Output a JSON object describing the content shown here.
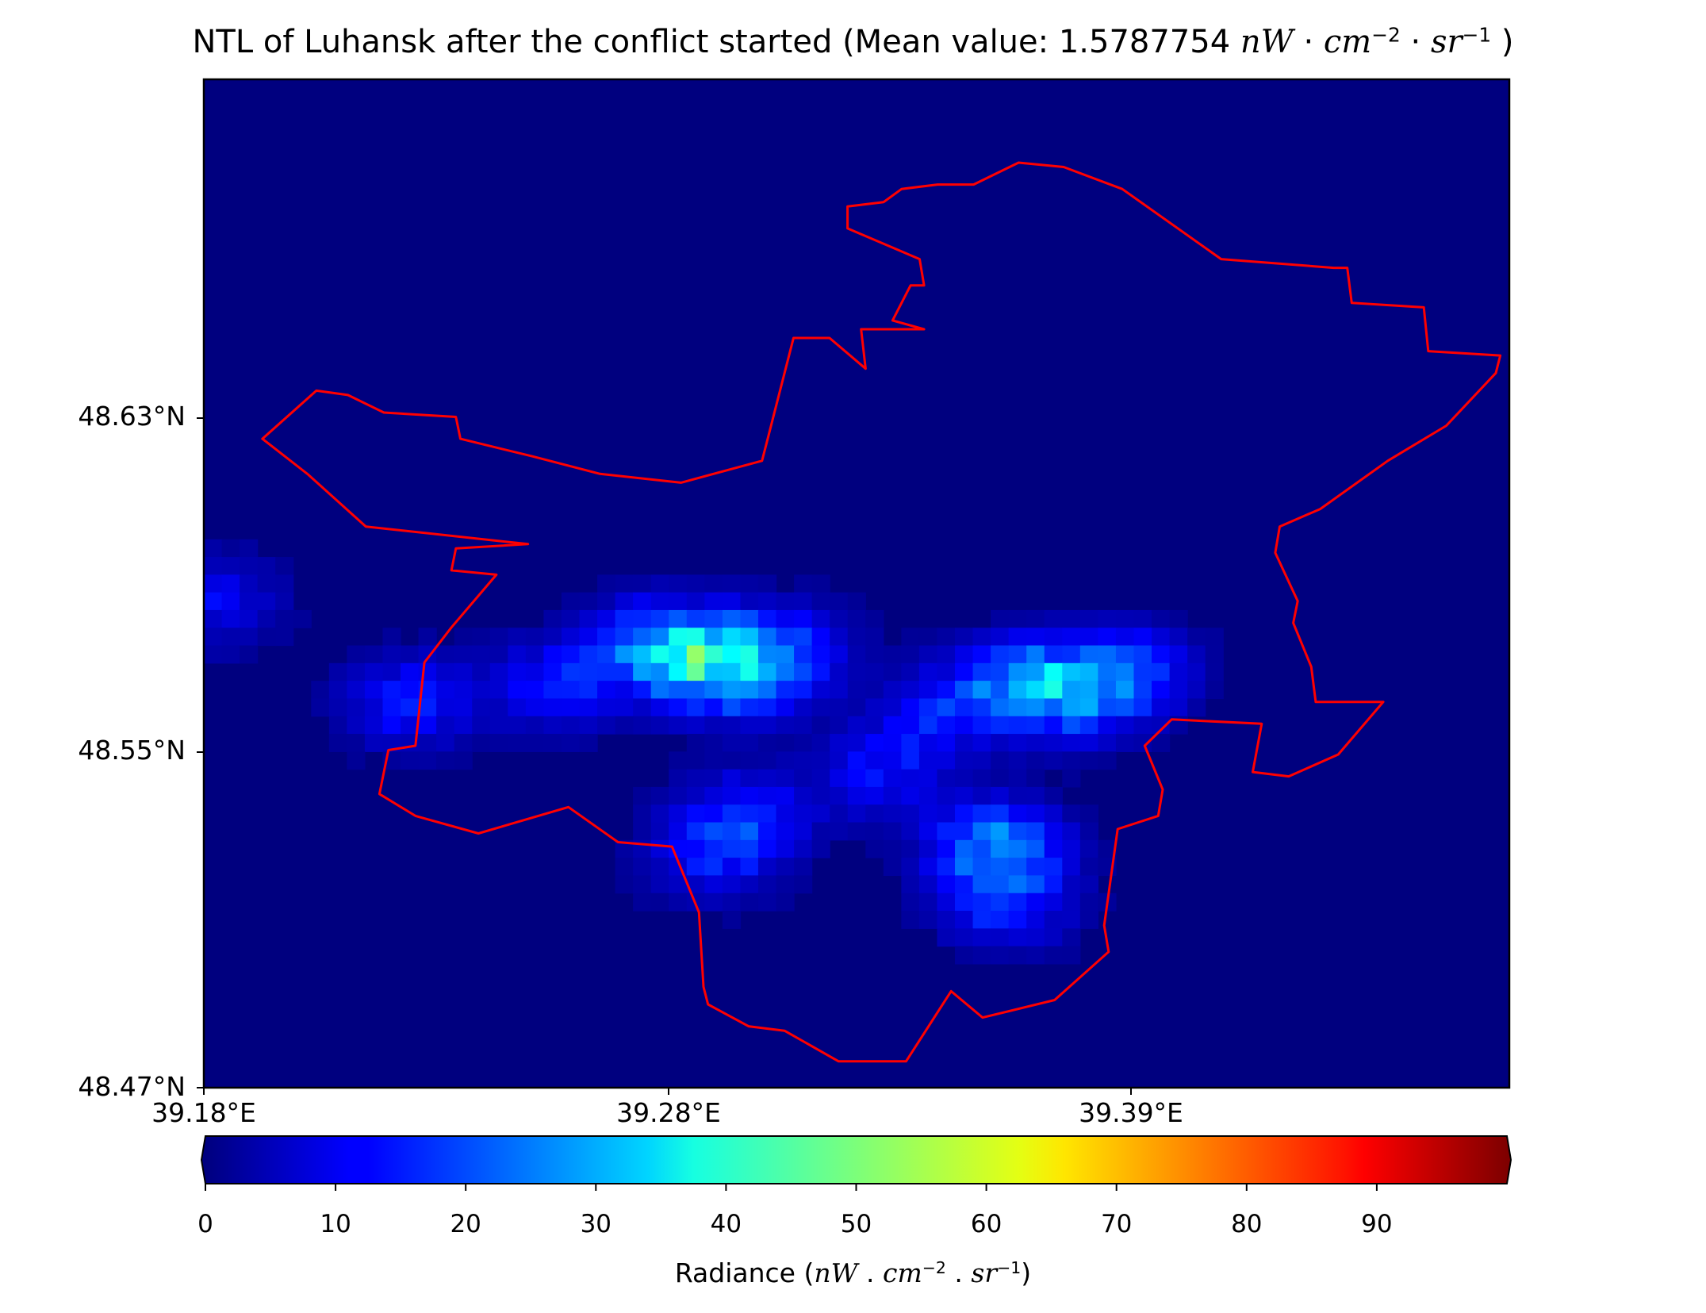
{
  "title": {
    "prefix": "NTL of Luhansk after the conflict started (Mean value: 1.5787754 ",
    "unit_nw": "nW",
    "dot1": " · ",
    "unit_cm": "cm",
    "exp_cm": "−2",
    "dot2": " · ",
    "unit_sr": "sr",
    "exp_sr": "−1",
    "suffix": " )"
  },
  "map": {
    "lat_range": [
      48.47,
      48.7
    ],
    "lon_range": [
      39.18,
      39.47
    ],
    "background_color": "#00007f",
    "boundary_color": "#ff0000",
    "lat_ticks": [
      {
        "value": 48.63,
        "label": "48.63°N"
      },
      {
        "value": 48.55,
        "label": "48.55°N"
      },
      {
        "value": 48.47,
        "label": "48.47°N"
      }
    ],
    "lon_ticks": [
      {
        "value": 39.18,
        "label": "39.18°E"
      },
      {
        "value": 39.28,
        "label": "39.28°E"
      },
      {
        "value": 39.39,
        "label": "39.39°E"
      }
    ],
    "boundary_lonlat": [
      [
        39.323,
        48.666
      ],
      [
        39.323,
        48.671
      ],
      [
        39.331,
        48.672
      ],
      [
        39.335,
        48.675
      ],
      [
        39.343,
        48.676
      ],
      [
        39.351,
        48.676
      ],
      [
        39.361,
        48.681
      ],
      [
        39.371,
        48.68
      ],
      [
        39.384,
        48.675
      ],
      [
        39.406,
        48.659
      ],
      [
        39.431,
        48.657
      ],
      [
        39.434,
        48.657
      ],
      [
        39.435,
        48.649
      ],
      [
        39.451,
        48.648
      ],
      [
        39.452,
        48.638
      ],
      [
        39.468,
        48.637
      ],
      [
        39.467,
        48.633
      ],
      [
        39.456,
        48.621
      ],
      [
        39.443,
        48.613
      ],
      [
        39.428,
        48.602
      ],
      [
        39.419,
        48.598
      ],
      [
        39.418,
        48.592
      ],
      [
        39.423,
        48.581
      ],
      [
        39.422,
        48.576
      ],
      [
        39.426,
        48.566
      ],
      [
        39.427,
        48.558
      ],
      [
        39.442,
        48.558
      ],
      [
        39.432,
        48.546
      ],
      [
        39.421,
        48.541
      ],
      [
        39.413,
        48.542
      ],
      [
        39.415,
        48.553
      ],
      [
        39.395,
        48.554
      ],
      [
        39.389,
        48.548
      ],
      [
        39.393,
        48.538
      ],
      [
        39.392,
        48.532
      ],
      [
        39.383,
        48.529
      ],
      [
        39.38,
        48.507
      ],
      [
        39.381,
        48.501
      ],
      [
        39.369,
        48.49
      ],
      [
        39.353,
        48.486
      ],
      [
        39.346,
        48.492
      ],
      [
        39.336,
        48.476
      ],
      [
        39.321,
        48.476
      ],
      [
        39.309,
        48.483
      ],
      [
        39.301,
        48.484
      ],
      [
        39.292,
        48.489
      ],
      [
        39.291,
        48.493
      ],
      [
        39.29,
        48.51
      ],
      [
        39.284,
        48.525
      ],
      [
        39.272,
        48.526
      ],
      [
        39.261,
        48.534
      ],
      [
        39.241,
        48.528
      ],
      [
        39.227,
        48.532
      ],
      [
        39.219,
        48.537
      ],
      [
        39.221,
        48.547
      ],
      [
        39.227,
        48.548
      ],
      [
        39.229,
        48.567
      ],
      [
        39.235,
        48.575
      ],
      [
        39.245,
        48.587
      ],
      [
        39.235,
        48.588
      ],
      [
        39.236,
        48.593
      ],
      [
        39.252,
        48.594
      ],
      [
        39.216,
        48.598
      ],
      [
        39.203,
        48.61
      ],
      [
        39.193,
        48.618
      ],
      [
        39.205,
        48.629
      ],
      [
        39.212,
        48.628
      ],
      [
        39.22,
        48.624
      ],
      [
        39.236,
        48.623
      ],
      [
        39.237,
        48.618
      ],
      [
        39.253,
        48.614
      ],
      [
        39.268,
        48.61
      ],
      [
        39.286,
        48.608
      ],
      [
        39.304,
        48.613
      ],
      [
        39.305,
        48.617
      ],
      [
        39.311,
        48.641
      ],
      [
        39.319,
        48.641
      ],
      [
        39.327,
        48.634
      ],
      [
        39.326,
        48.643
      ],
      [
        39.34,
        48.643
      ],
      [
        39.333,
        48.645
      ],
      [
        39.337,
        48.653
      ],
      [
        39.34,
        48.653
      ],
      [
        39.339,
        48.659
      ],
      [
        39.323,
        48.666
      ]
    ]
  },
  "colorbar": {
    "cmap": "jet",
    "min": 0,
    "max": 100,
    "extend": "both",
    "ticks": [
      {
        "value": 0,
        "label": "0"
      },
      {
        "value": 10,
        "label": "10"
      },
      {
        "value": 20,
        "label": "20"
      },
      {
        "value": 30,
        "label": "30"
      },
      {
        "value": 40,
        "label": "40"
      },
      {
        "value": 50,
        "label": "50"
      },
      {
        "value": 60,
        "label": "60"
      },
      {
        "value": 70,
        "label": "70"
      },
      {
        "value": 80,
        "label": "80"
      },
      {
        "value": 90,
        "label": "90"
      }
    ],
    "label": {
      "prefix": "Radiance (",
      "unit_nw": "nW",
      "dot1": " . ",
      "unit_cm": "cm",
      "exp_cm": "−2",
      "dot2": " . ",
      "unit_sr": "sr",
      "exp_sr": "−1",
      "suffix": ")"
    }
  },
  "radiance_field": {
    "units": "nW·cm⁻²·sr⁻¹",
    "hotspots": [
      {
        "lon": 39.28,
        "lat": 48.571,
        "value": 19
      },
      {
        "lon": 39.298,
        "lat": 48.565,
        "value": 24
      },
      {
        "lon": 39.29,
        "lat": 48.568,
        "value": 14
      },
      {
        "lon": 39.258,
        "lat": 48.562,
        "value": 13
      },
      {
        "lon": 39.226,
        "lat": 48.558,
        "value": 14
      },
      {
        "lon": 39.31,
        "lat": 48.57,
        "value": 12
      },
      {
        "lon": 39.362,
        "lat": 48.562,
        "value": 21
      },
      {
        "lon": 39.375,
        "lat": 48.56,
        "value": 17
      },
      {
        "lon": 39.386,
        "lat": 48.565,
        "value": 14
      },
      {
        "lon": 39.344,
        "lat": 48.556,
        "value": 12
      },
      {
        "lon": 39.356,
        "lat": 48.525,
        "value": 24
      },
      {
        "lon": 39.358,
        "lat": 48.512,
        "value": 14
      },
      {
        "lon": 39.3,
        "lat": 48.532,
        "value": 13
      },
      {
        "lon": 39.293,
        "lat": 48.523,
        "value": 12
      },
      {
        "lon": 39.33,
        "lat": 48.542,
        "value": 12
      },
      {
        "lon": 39.182,
        "lat": 48.581,
        "value": 10
      }
    ]
  }
}
